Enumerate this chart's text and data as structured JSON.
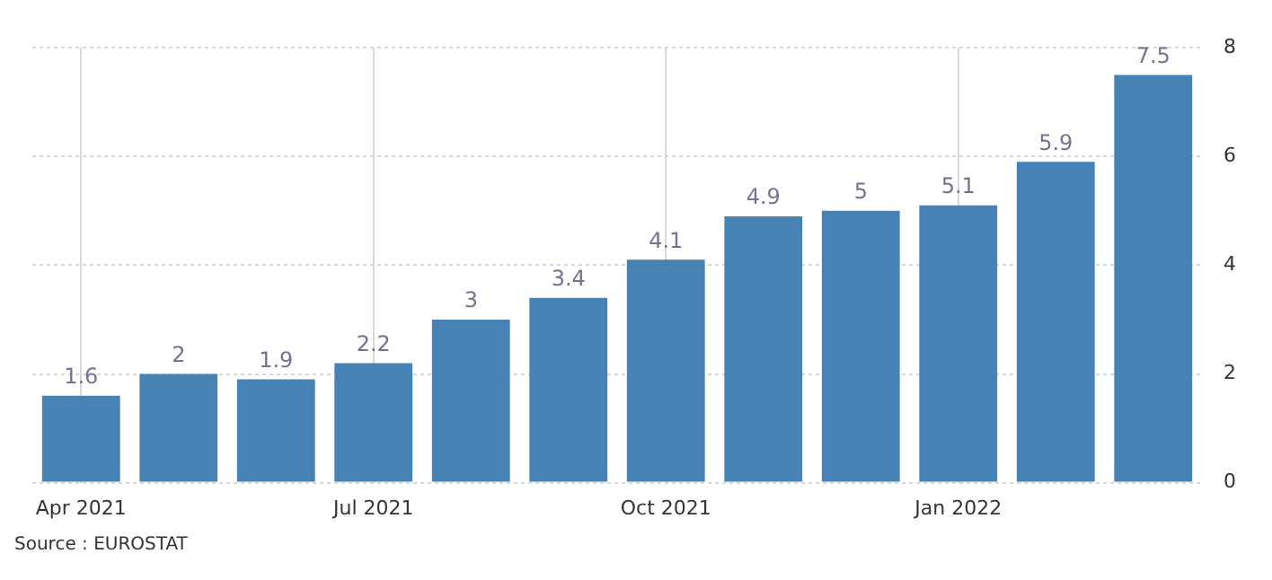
{
  "chart_data": {
    "type": "bar",
    "categories": [
      "Apr 2021",
      null,
      null,
      "Jul 2021",
      null,
      null,
      "Oct 2021",
      null,
      null,
      "Jan 2022",
      null,
      null
    ],
    "values": [
      1.6,
      2,
      1.9,
      2.2,
      3,
      3.4,
      4.1,
      4.9,
      5,
      5.1,
      5.9,
      7.5
    ],
    "color": "#4682b4",
    "ylim": [
      0,
      8
    ],
    "yticks": [
      0,
      2,
      4,
      6,
      8
    ],
    "grid": true,
    "data_labels": true,
    "annotations": [
      "Source : EUROSTAT"
    ]
  }
}
